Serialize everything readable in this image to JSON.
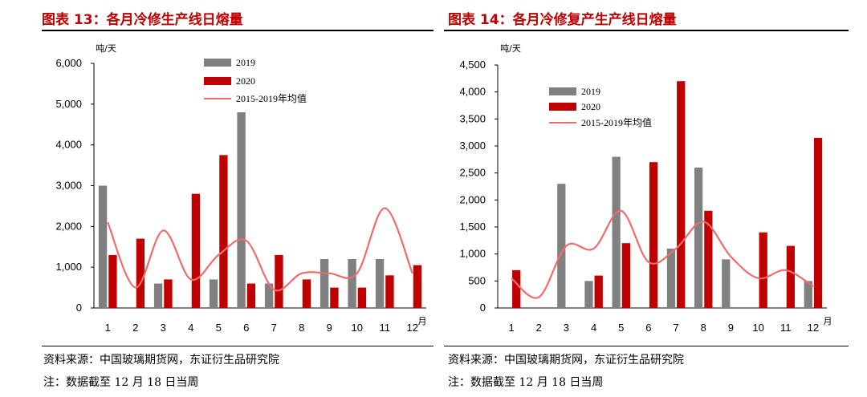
{
  "left": {
    "title": "图表 13：各月冷修生产线日熔量",
    "source": "资料来源：中国玻璃期货网，东证衍生品研究院",
    "note": "注：数据截至 12 月 18 日当周"
  },
  "right": {
    "title": "图表 14：各月冷修复产生产线日熔量",
    "source": "资料来源：中国玻璃期货网，东证衍生品研究院",
    "note": "注：数据截至 12 月 18 日当周"
  },
  "colors": {
    "s2019": "#808080",
    "s2020": "#c00000",
    "avg": "#f26b6b",
    "title": "#c00000"
  },
  "chart_data": [
    {
      "type": "bar",
      "ylabel": "吨/天",
      "xlabel": "月",
      "ylim": [
        0,
        6000
      ],
      "yticks": [
        0,
        1000,
        2000,
        3000,
        4000,
        5000,
        6000
      ],
      "ytick_labels": [
        "0",
        "1,000",
        "2,000",
        "3,000",
        "4,000",
        "5,000",
        "6,000"
      ],
      "categories": [
        "1",
        "2",
        "3",
        "4",
        "5",
        "6",
        "7",
        "8",
        "9",
        "10",
        "11",
        "12"
      ],
      "legend_position": "top",
      "series": [
        {
          "name": "2019",
          "type": "bar",
          "values": [
            3000,
            0,
            600,
            0,
            700,
            4800,
            600,
            0,
            1200,
            1200,
            1200,
            0
          ]
        },
        {
          "name": "2020",
          "type": "bar",
          "values": [
            1300,
            1700,
            700,
            2800,
            3750,
            600,
            1300,
            700,
            500,
            500,
            800,
            1050
          ]
        },
        {
          "name": "2015-2019年均值",
          "type": "line",
          "values": [
            2100,
            500,
            1900,
            700,
            1300,
            1650,
            450,
            850,
            850,
            850,
            2450,
            850
          ]
        }
      ]
    },
    {
      "type": "bar",
      "ylabel": "吨/天",
      "xlabel": "月",
      "ylim": [
        0,
        4500
      ],
      "yticks": [
        0,
        500,
        1000,
        1500,
        2000,
        2500,
        3000,
        3500,
        4000,
        4500
      ],
      "ytick_labels": [
        "0",
        "500",
        "1,000",
        "1,500",
        "2,000",
        "2,500",
        "3,000",
        "3,500",
        "4,000",
        "4,500"
      ],
      "categories": [
        "1",
        "2",
        "3",
        "4",
        "5",
        "6",
        "7",
        "8",
        "9",
        "10",
        "11",
        "12"
      ],
      "legend_position": "top-left",
      "series": [
        {
          "name": "2019",
          "type": "bar",
          "values": [
            0,
            0,
            2300,
            500,
            2800,
            0,
            1100,
            2600,
            900,
            0,
            0,
            500
          ]
        },
        {
          "name": "2020",
          "type": "bar",
          "values": [
            700,
            0,
            0,
            600,
            1200,
            2700,
            4200,
            1800,
            0,
            1400,
            1150,
            3150
          ]
        },
        {
          "name": "2015-2019年均值",
          "type": "line",
          "values": [
            550,
            200,
            1150,
            1100,
            1800,
            850,
            1100,
            1600,
            950,
            550,
            700,
            400
          ]
        }
      ]
    }
  ]
}
